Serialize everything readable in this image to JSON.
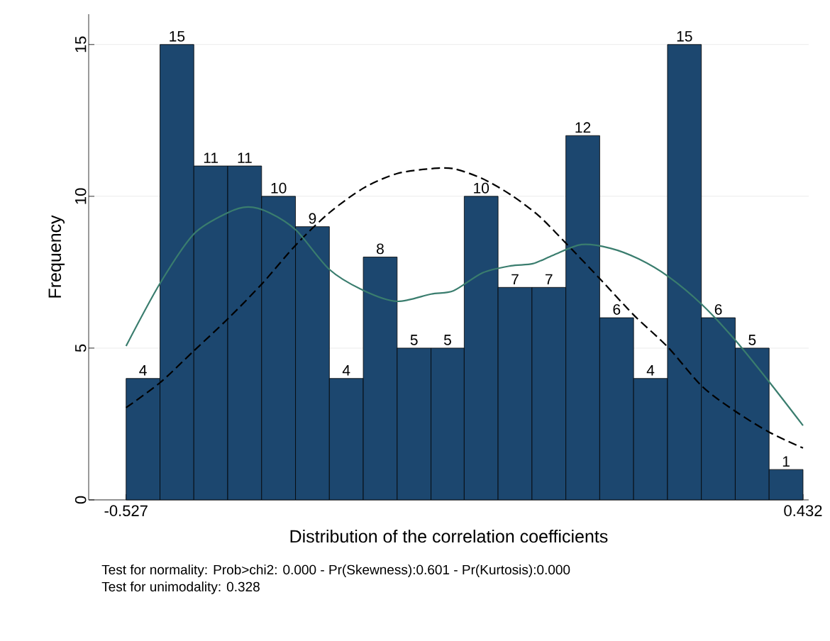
{
  "chart_data": {
    "type": "histogram",
    "xlabel": "Distribution of the correlation coefficients",
    "ylabel": "Frequency",
    "annotations": [
      "Test for normality:  Prob>chi2: 0.000 -  Pr(Skewness):0.601 -  Pr(Kurtosis):0.000",
      "Test for unimodality: 0.328"
    ],
    "bins": [
      -0.527,
      -0.479,
      -0.431,
      -0.383,
      -0.335,
      -0.287,
      -0.239,
      -0.191,
      -0.143,
      -0.095,
      -0.048,
      0.0,
      0.048,
      0.096,
      0.144,
      0.192,
      0.24,
      0.288,
      0.336,
      0.384,
      0.432
    ],
    "xlim": [
      -0.58,
      0.44
    ],
    "xticks": [
      -0.527,
      0.432
    ],
    "ylim": [
      0,
      16
    ],
    "yticks": [
      0,
      5,
      10,
      15
    ],
    "grid": "y",
    "series": [
      {
        "color": "#1c476f",
        "values": [
          4,
          15,
          11,
          11,
          10,
          9,
          4,
          8,
          5,
          5,
          10,
          7,
          7,
          12,
          6,
          4,
          15,
          6,
          5,
          1
        ],
        "value_labels": [
          "4",
          "15",
          "11",
          "11",
          "10",
          "9",
          "4",
          "8",
          "5",
          "5",
          "10",
          "7",
          "7",
          "12",
          "6",
          "4",
          "15",
          "6",
          "5",
          "1"
        ]
      },
      {
        "type": "line",
        "color": "#000000",
        "line_style": "dashed",
        "x": [
          -0.527,
          -0.479,
          -0.431,
          -0.383,
          -0.334,
          -0.286,
          -0.239,
          -0.19,
          -0.143,
          -0.095,
          -0.063,
          -0.022,
          0.018,
          0.058,
          0.098,
          0.146,
          0.193,
          0.241,
          0.289,
          0.336,
          0.385,
          0.432
        ],
        "values": [
          3.04,
          3.86,
          4.91,
          5.96,
          7.13,
          8.41,
          9.46,
          10.28,
          10.75,
          10.91,
          10.91,
          10.58,
          10.05,
          9.35,
          8.41,
          7.24,
          6.07,
          5.02,
          3.74,
          2.92,
          2.22,
          1.71
        ]
      },
      {
        "type": "line",
        "color": "#3a7d6e",
        "line_style": "solid",
        "x": [
          -0.527,
          -0.479,
          -0.431,
          -0.383,
          -0.354,
          -0.324,
          -0.286,
          -0.239,
          -0.19,
          -0.143,
          -0.095,
          -0.063,
          -0.022,
          0.018,
          0.049,
          0.078,
          0.118,
          0.159,
          0.199,
          0.241,
          0.289,
          0.336,
          0.385,
          0.432
        ],
        "values": [
          5.07,
          7.13,
          8.76,
          9.46,
          9.65,
          9.46,
          8.88,
          7.59,
          6.89,
          6.54,
          6.78,
          6.89,
          7.48,
          7.71,
          7.78,
          8.06,
          8.41,
          8.29,
          7.94,
          7.36,
          6.43,
          5.26,
          3.86,
          2.45
        ]
      }
    ]
  }
}
